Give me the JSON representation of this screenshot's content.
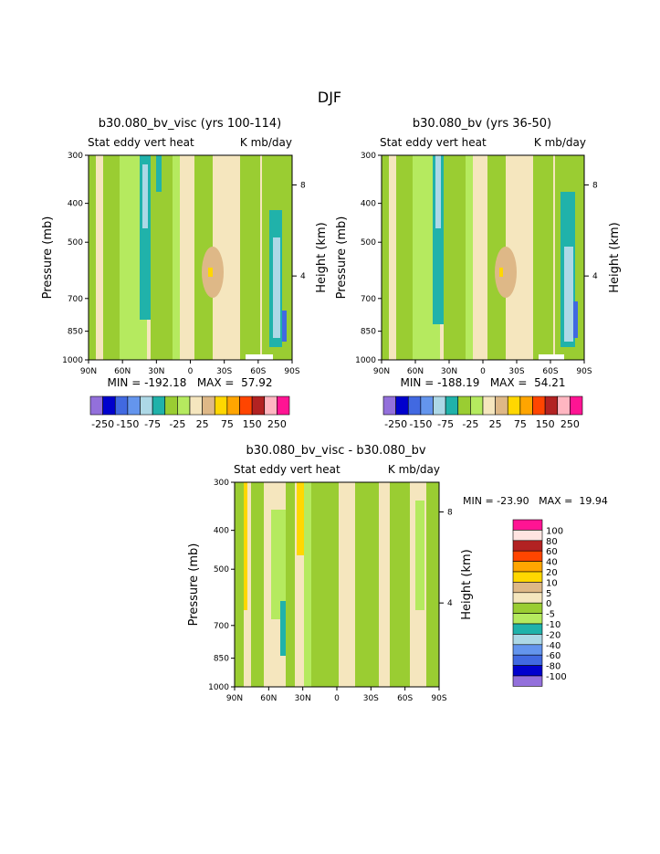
{
  "page_title": "DJF",
  "palette": {
    "panel": [
      "#9370db",
      "#0000cd",
      "#4169e1",
      "#6495ed",
      "#add8e6",
      "#20b2aa",
      "#9acd32",
      "#b5ea5f",
      "#f5e6be",
      "#deb887",
      "#ffd700",
      "#ffa500",
      "#ff4500",
      "#b22222",
      "#ffb6c1",
      "#ff1493"
    ],
    "diff": [
      "#9370db",
      "#0000cd",
      "#4169e1",
      "#6495ed",
      "#add8e6",
      "#20b2aa",
      "#b5ea5f",
      "#9acd32",
      "#f5e6be",
      "#deb887",
      "#ffd700",
      "#ffa500",
      "#ff4500",
      "#b22222",
      "#ffe4e1",
      "#ff1493"
    ],
    "background_fill": "#f5e6be",
    "dark_green": "#9acd32",
    "light_green": "#b5ea5f",
    "tan": "#deb887",
    "teal": "#20b2aa",
    "light_blue": "#add8e6",
    "blue": "#4169e1",
    "yellow": "#ffd700"
  },
  "chart_data": [
    {
      "type": "heatmap",
      "title": "b30.080_bv_visc (yrs 100-114)",
      "subtitle_left": "Stat eddy vert heat",
      "subtitle_right": "K mb/day",
      "ylabel": "Pressure (mb)",
      "ylabel_right": "Height (km)",
      "x_ticks": [
        "90N",
        "60N",
        "30N",
        "0",
        "30S",
        "60S",
        "90S"
      ],
      "y_ticks": [
        "300",
        "400",
        "500",
        "700",
        "850",
        "1000"
      ],
      "y_ticks_right": [
        "8",
        "4"
      ],
      "stats": "MIN = -192.18   MAX =  57.92",
      "colorbar_labels": [
        "-250",
        "-150",
        "-75",
        "-25",
        "25",
        "75",
        "150",
        "250"
      ]
    },
    {
      "type": "heatmap",
      "title": "b30.080_bv (yrs 36-50)",
      "subtitle_left": "Stat eddy vert heat",
      "subtitle_right": "K mb/day",
      "ylabel": "Pressure (mb)",
      "ylabel_right": "Height (km)",
      "x_ticks": [
        "90N",
        "60N",
        "30N",
        "0",
        "30S",
        "60S",
        "90S"
      ],
      "y_ticks": [
        "300",
        "400",
        "500",
        "700",
        "850",
        "1000"
      ],
      "y_ticks_right": [
        "8",
        "4"
      ],
      "stats": "MIN = -188.19   MAX =  54.21",
      "colorbar_labels": [
        "-250",
        "-150",
        "-75",
        "-25",
        "25",
        "75",
        "150",
        "250"
      ]
    },
    {
      "type": "heatmap",
      "title": "b30.080_bv_visc - b30.080_bv",
      "subtitle_left": "Stat eddy vert heat",
      "subtitle_right": "K mb/day",
      "ylabel": "Pressure (mb)",
      "ylabel_right": "Height (km)",
      "x_ticks": [
        "90N",
        "60N",
        "30N",
        "0",
        "30S",
        "60S",
        "90S"
      ],
      "y_ticks": [
        "300",
        "400",
        "500",
        "700",
        "850",
        "1000"
      ],
      "y_ticks_right": [
        "8",
        "4"
      ],
      "stats": "MIN = -23.90   MAX =  19.94",
      "colorbar_labels": [
        "100",
        "80",
        "60",
        "40",
        "20",
        "10",
        "5",
        "0",
        "-5",
        "-10",
        "-20",
        "-40",
        "-60",
        "-80",
        "-100"
      ]
    }
  ]
}
